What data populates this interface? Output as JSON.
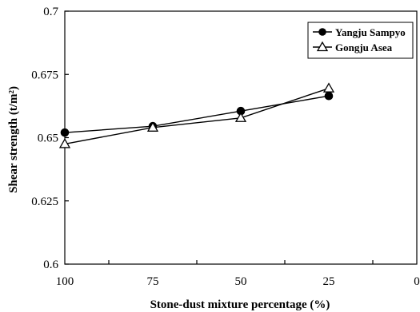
{
  "chart_data": {
    "type": "line",
    "x": [
      100,
      75,
      50,
      25
    ],
    "x_ticks": [
      "100",
      "75",
      "50",
      "25",
      "0"
    ],
    "xlim": [
      100,
      0
    ],
    "y_ticks": [
      "0.6",
      "0.625",
      "0.65",
      "0.675",
      "0.7"
    ],
    "ylim": [
      0.6,
      0.7
    ],
    "xlabel": "Stone-dust mixture percentage (%)",
    "ylabel": "Shear strength (t/m²)",
    "grid": false,
    "legend_position": "top-right",
    "series": [
      {
        "name": "Yangju Sampyo",
        "marker": "filled-circle",
        "color": "#000000",
        "values": [
          0.652,
          0.6545,
          0.6605,
          0.6665
        ]
      },
      {
        "name": "Gongju Asea",
        "marker": "open-triangle",
        "color": "#000000",
        "values": [
          0.6475,
          0.654,
          0.6578,
          0.6695
        ]
      }
    ]
  }
}
